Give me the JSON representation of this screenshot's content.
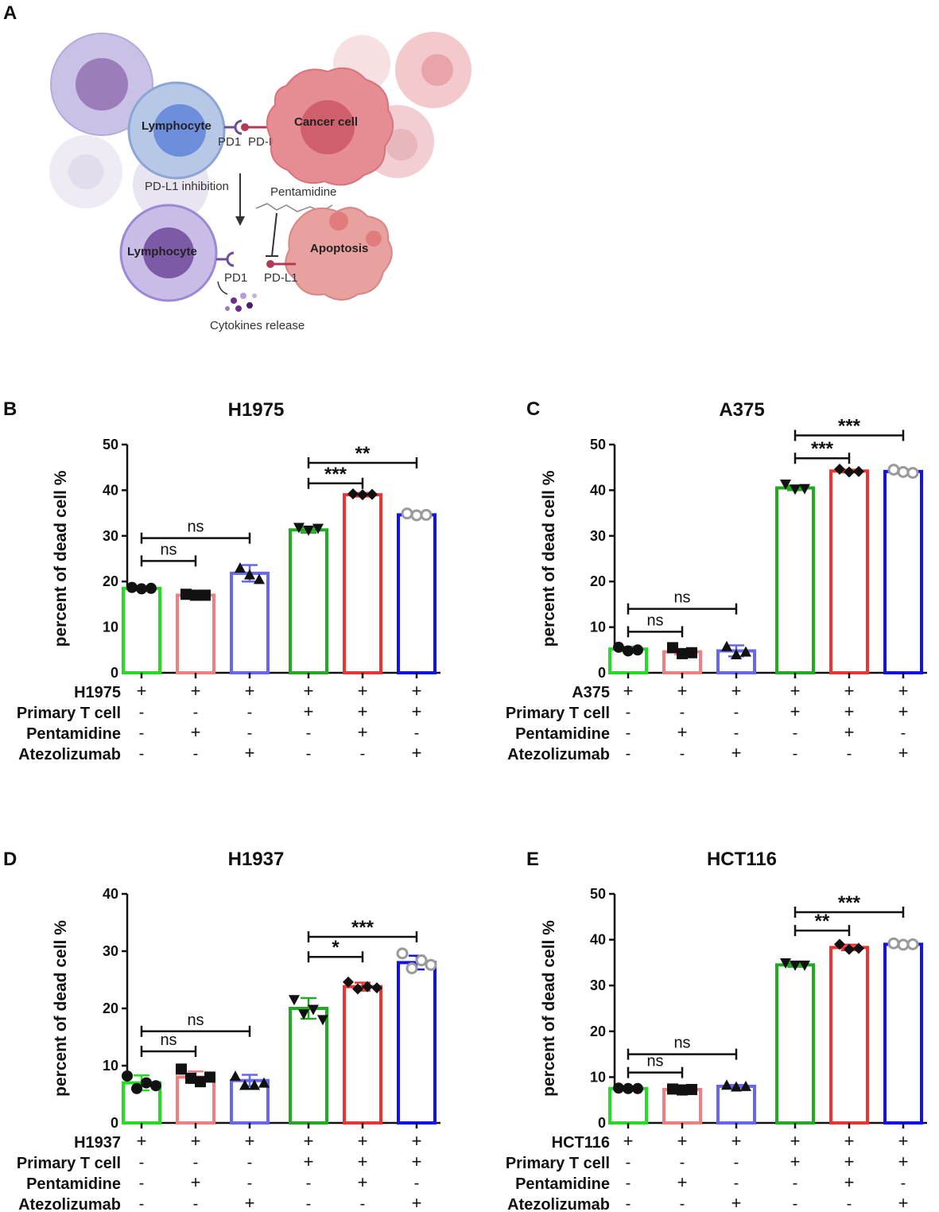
{
  "figure_letters": [
    "A",
    "B",
    "C",
    "D",
    "E"
  ],
  "diagram": {
    "lymphocyte_label": "Lymphocyte",
    "cancer_label": "Cancer cell",
    "pd1_label": "PD1",
    "pdl1_label": "PD-L1",
    "inhibition_label": "PD-L1 inhibition",
    "drug_label": "Pentamidine",
    "lymphocyte2_label": "Lymphocyte",
    "apoptosis_label": "Apoptosis",
    "pd1b_label": "PD1",
    "pdl1b_label": "PD-L1",
    "cytokines_label": "Cytokines release"
  },
  "colors": {
    "green": "#22dd22",
    "salmon": "#f08080",
    "slateblue": "#6666ee",
    "red": "#ee3333",
    "blue": "#1111ee",
    "black": "#111111"
  },
  "chart_data": [
    {
      "type": "bar",
      "panel": "B",
      "title": "H1975",
      "ylabel": "percent of dead cell %",
      "ylim": [
        0,
        50
      ],
      "yticks": [
        "0",
        "10",
        "20",
        "30",
        "40",
        "50"
      ],
      "categories": [
        "1",
        "2",
        "3",
        "4",
        "5",
        "6"
      ],
      "values": [
        18.5,
        17.0,
        21.8,
        31.3,
        39.0,
        34.6
      ],
      "errors": [
        0.2,
        0.2,
        1.8,
        0.6,
        0.4,
        0.3
      ],
      "points": [
        [
          18.7,
          18.4,
          18.5
        ],
        [
          17.2,
          17.0,
          17.0
        ],
        [
          23.0,
          21.5,
          20.5
        ],
        [
          31.8,
          31.2,
          31.6
        ],
        [
          39.2,
          39.0,
          39.1
        ],
        [
          34.9,
          34.5,
          34.6
        ]
      ],
      "markers": [
        "circle",
        "square",
        "triangle-up",
        "triangle-down",
        "diamond",
        "circle-open"
      ],
      "colors": [
        "#22dd22",
        "#f08080",
        "#6666ee",
        "#22aa22",
        "#ee3333",
        "#1111ee"
      ],
      "rows": [
        {
          "label": "H1975",
          "signs": [
            "+",
            "+",
            "+",
            "+",
            "+",
            "+"
          ]
        },
        {
          "label": "Primary T cell",
          "signs": [
            "-",
            "-",
            "-",
            "+",
            "+",
            "+"
          ]
        },
        {
          "label": "Pentamidine",
          "signs": [
            "-",
            "+",
            "-",
            "-",
            "+",
            "-"
          ]
        },
        {
          "label": "Atezolizumab",
          "signs": [
            "-",
            "-",
            "+",
            "-",
            "-",
            "+"
          ]
        }
      ],
      "comparisons": [
        {
          "from": 0,
          "to": 1,
          "label": "ns",
          "y": 24.5
        },
        {
          "from": 0,
          "to": 2,
          "label": "ns",
          "y": 29.5
        },
        {
          "from": 3,
          "to": 4,
          "label": "***",
          "y": 41.5
        },
        {
          "from": 3,
          "to": 5,
          "label": "**",
          "y": 46.0
        }
      ]
    },
    {
      "type": "bar",
      "panel": "C",
      "title": "A375",
      "ylabel": "percent of dead cell %",
      "ylim": [
        0,
        50
      ],
      "yticks": [
        "0",
        "10",
        "20",
        "30",
        "40",
        "50"
      ],
      "categories": [
        "1",
        "2",
        "3",
        "4",
        "5",
        "6"
      ],
      "values": [
        5.2,
        4.6,
        4.8,
        40.5,
        44.2,
        44.1
      ],
      "errors": [
        0.5,
        0.6,
        1.2,
        0.5,
        0.3,
        0.4
      ],
      "points": [
        [
          5.6,
          4.8,
          5.0
        ],
        [
          5.5,
          4.2,
          4.4
        ],
        [
          5.8,
          4.0,
          4.6
        ],
        [
          41.3,
          40.2,
          40.3
        ],
        [
          44.6,
          44.0,
          44.1
        ],
        [
          44.5,
          44.0,
          43.8
        ]
      ],
      "markers": [
        "circle",
        "square",
        "triangle-up",
        "triangle-down",
        "diamond",
        "circle-open"
      ],
      "colors": [
        "#22dd22",
        "#f08080",
        "#6666ee",
        "#22aa22",
        "#ee3333",
        "#1111ee"
      ],
      "rows": [
        {
          "label": "A375",
          "signs": [
            "+",
            "+",
            "+",
            "+",
            "+",
            "+"
          ]
        },
        {
          "label": "Primary T cell",
          "signs": [
            "-",
            "-",
            "-",
            "+",
            "+",
            "+"
          ]
        },
        {
          "label": "Pentamidine",
          "signs": [
            "-",
            "+",
            "-",
            "-",
            "+",
            "-"
          ]
        },
        {
          "label": "Atezolizumab",
          "signs": [
            "-",
            "-",
            "+",
            "-",
            "-",
            "+"
          ]
        }
      ],
      "comparisons": [
        {
          "from": 0,
          "to": 1,
          "label": "ns",
          "y": 9.0
        },
        {
          "from": 0,
          "to": 2,
          "label": "ns",
          "y": 14.0
        },
        {
          "from": 3,
          "to": 4,
          "label": "***",
          "y": 47.0
        },
        {
          "from": 3,
          "to": 5,
          "label": "***",
          "y": 52.0
        }
      ]
    },
    {
      "type": "bar",
      "panel": "D",
      "title": "H1937",
      "ylabel": "percent of dead cell %",
      "ylim": [
        0,
        40
      ],
      "yticks": [
        "0",
        "10",
        "20",
        "30",
        "40"
      ],
      "categories": [
        "1",
        "2",
        "3",
        "4",
        "5",
        "6"
      ],
      "values": [
        7.0,
        8.0,
        7.4,
        20.0,
        23.8,
        28.0
      ],
      "errors": [
        1.3,
        1.0,
        1.0,
        1.8,
        0.7,
        1.2
      ],
      "points": [
        [
          8.2,
          6.0,
          7.0,
          6.5
        ],
        [
          9.4,
          7.8,
          7.2,
          8.0
        ],
        [
          8.2,
          6.6,
          6.6,
          7.0
        ],
        [
          21.5,
          19.0,
          19.8,
          18.0
        ],
        [
          24.6,
          23.4,
          23.8,
          23.6
        ],
        [
          29.6,
          27.0,
          28.4,
          27.6
        ]
      ],
      "markers": [
        "circle",
        "square",
        "triangle-up",
        "triangle-down",
        "diamond",
        "circle-open"
      ],
      "colors": [
        "#22dd22",
        "#f08080",
        "#6666ee",
        "#22aa22",
        "#ee3333",
        "#1111ee"
      ],
      "rows": [
        {
          "label": "H1937",
          "signs": [
            "+",
            "+",
            "+",
            "+",
            "+",
            "+"
          ]
        },
        {
          "label": "Primary T cell",
          "signs": [
            "-",
            "-",
            "-",
            "+",
            "+",
            "+"
          ]
        },
        {
          "label": "Pentamidine",
          "signs": [
            "-",
            "+",
            "-",
            "-",
            "+",
            "-"
          ]
        },
        {
          "label": "Atezolizumab",
          "signs": [
            "-",
            "-",
            "+",
            "-",
            "-",
            "+"
          ]
        }
      ],
      "comparisons": [
        {
          "from": 0,
          "to": 1,
          "label": "ns",
          "y": 12.5
        },
        {
          "from": 0,
          "to": 2,
          "label": "ns",
          "y": 16.0
        },
        {
          "from": 3,
          "to": 4,
          "label": "*",
          "y": 29.0
        },
        {
          "from": 3,
          "to": 5,
          "label": "***",
          "y": 32.5
        }
      ]
    },
    {
      "type": "bar",
      "panel": "E",
      "title": "HCT116",
      "ylabel": "percent of dead cell %",
      "ylim": [
        0,
        50
      ],
      "yticks": [
        "0",
        "10",
        "20",
        "30",
        "40",
        "50"
      ],
      "categories": [
        "1",
        "2",
        "3",
        "4",
        "5",
        "6"
      ],
      "values": [
        7.5,
        7.3,
        8.0,
        34.5,
        38.3,
        39.0
      ],
      "errors": [
        0.1,
        0.2,
        0.3,
        0.4,
        0.6,
        0.2
      ],
      "points": [
        [
          7.6,
          7.5,
          7.5
        ],
        [
          7.4,
          7.2,
          7.3
        ],
        [
          8.3,
          7.9,
          8.0
        ],
        [
          34.9,
          34.4,
          34.4
        ],
        [
          39.0,
          37.9,
          38.1
        ],
        [
          39.2,
          38.9,
          39.0
        ]
      ],
      "markers": [
        "circle",
        "square",
        "triangle-up",
        "triangle-down",
        "diamond",
        "circle-open"
      ],
      "colors": [
        "#22dd22",
        "#f08080",
        "#6666ee",
        "#22aa22",
        "#ee3333",
        "#1111ee"
      ],
      "rows": [
        {
          "label": "HCT116",
          "signs": [
            "+",
            "+",
            "+",
            "+",
            "+",
            "+"
          ]
        },
        {
          "label": "Primary T cell",
          "signs": [
            "-",
            "-",
            "-",
            "+",
            "+",
            "+"
          ]
        },
        {
          "label": "Pentamidine",
          "signs": [
            "-",
            "+",
            "-",
            "-",
            "+",
            "-"
          ]
        },
        {
          "label": "Atezolizumab",
          "signs": [
            "-",
            "-",
            "+",
            "-",
            "-",
            "+"
          ]
        }
      ],
      "comparisons": [
        {
          "from": 0,
          "to": 1,
          "label": "ns",
          "y": 11.0
        },
        {
          "from": 0,
          "to": 2,
          "label": "ns",
          "y": 15.0
        },
        {
          "from": 3,
          "to": 4,
          "label": "**",
          "y": 42.0
        },
        {
          "from": 3,
          "to": 5,
          "label": "***",
          "y": 46.0
        }
      ]
    }
  ]
}
